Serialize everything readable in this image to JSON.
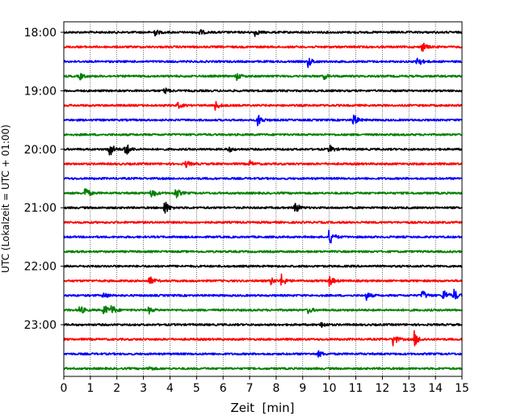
{
  "chart_data": {
    "type": "line",
    "subtype": "helicorder seismogram",
    "xlabel": "Zeit  [min]",
    "ylabel": "UTC (Lokalzeit = UTC + 01:00)",
    "xlim": [
      0,
      15
    ],
    "x_ticks": [
      "0",
      "1",
      "2",
      "3",
      "4",
      "5",
      "6",
      "7",
      "8",
      "9",
      "10",
      "11",
      "12",
      "13",
      "14",
      "15"
    ],
    "x_grid": "dotted vertical lines at each minute",
    "y_tick_labels": [
      "18:00",
      "19:00",
      "20:00",
      "21:00",
      "22:00",
      "23:00"
    ],
    "trace_interval_minutes": 15,
    "trace_colors": [
      "#000000",
      "#ff0000",
      "#0000ff",
      "#008000"
    ],
    "traces": [
      {
        "start": "18:00",
        "color": "#000000",
        "events": [
          [
            3.4,
            0.35
          ],
          [
            5.1,
            0.3
          ],
          [
            7.2,
            0.3
          ]
        ]
      },
      {
        "start": "18:15",
        "color": "#ff0000",
        "events": [
          [
            13.5,
            0.45
          ]
        ]
      },
      {
        "start": "18:30",
        "color": "#0000ff",
        "events": [
          [
            9.2,
            0.5
          ],
          [
            13.3,
            0.6
          ]
        ]
      },
      {
        "start": "18:45",
        "color": "#008000",
        "events": [
          [
            0.6,
            0.3
          ],
          [
            6.5,
            0.35
          ],
          [
            9.8,
            0.25
          ]
        ]
      },
      {
        "start": "19:00",
        "color": "#000000",
        "events": [
          [
            3.8,
            0.3
          ]
        ]
      },
      {
        "start": "19:15",
        "color": "#ff0000",
        "events": [
          [
            4.3,
            0.25
          ],
          [
            5.7,
            0.4
          ]
        ]
      },
      {
        "start": "19:30",
        "color": "#0000ff",
        "events": [
          [
            7.3,
            0.6
          ],
          [
            10.9,
            0.6
          ]
        ]
      },
      {
        "start": "19:45",
        "color": "#008000",
        "events": []
      },
      {
        "start": "20:00",
        "color": "#000000",
        "events": [
          [
            1.7,
            0.9
          ],
          [
            2.3,
            0.8
          ],
          [
            6.2,
            0.25
          ],
          [
            10.0,
            0.4
          ]
        ]
      },
      {
        "start": "20:15",
        "color": "#ff0000",
        "events": [
          [
            4.6,
            0.3
          ],
          [
            7.0,
            0.25
          ]
        ]
      },
      {
        "start": "20:30",
        "color": "#0000ff",
        "events": []
      },
      {
        "start": "20:45",
        "color": "#008000",
        "events": [
          [
            0.8,
            0.6
          ],
          [
            3.3,
            0.5
          ],
          [
            4.2,
            0.55
          ]
        ]
      },
      {
        "start": "21:00",
        "color": "#000000",
        "events": [
          [
            3.8,
            0.7
          ],
          [
            8.7,
            0.6
          ]
        ]
      },
      {
        "start": "21:15",
        "color": "#ff0000",
        "events": []
      },
      {
        "start": "21:30",
        "color": "#0000ff",
        "events": [
          [
            10.0,
            0.8
          ]
        ]
      },
      {
        "start": "21:45",
        "color": "#008000",
        "events": []
      },
      {
        "start": "22:00",
        "color": "#000000",
        "events": []
      },
      {
        "start": "22:15",
        "color": "#ff0000",
        "events": [
          [
            3.2,
            0.5
          ],
          [
            8.2,
            0.55
          ],
          [
            10.0,
            0.5
          ],
          [
            7.8,
            0.3
          ]
        ]
      },
      {
        "start": "22:30",
        "color": "#0000ff",
        "events": [
          [
            1.5,
            0.3
          ],
          [
            11.4,
            0.35
          ],
          [
            13.5,
            0.5
          ],
          [
            14.3,
            0.6
          ],
          [
            14.7,
            0.5
          ]
        ]
      },
      {
        "start": "22:45",
        "color": "#008000",
        "events": [
          [
            0.6,
            0.45
          ],
          [
            1.5,
            0.55
          ],
          [
            1.8,
            0.45
          ],
          [
            3.2,
            0.3
          ],
          [
            9.2,
            0.3
          ]
        ]
      },
      {
        "start": "23:00",
        "color": "#000000",
        "events": [
          [
            9.7,
            0.3
          ]
        ]
      },
      {
        "start": "23:15",
        "color": "#ff0000",
        "events": [
          [
            12.4,
            0.6
          ],
          [
            13.2,
            0.7
          ]
        ]
      },
      {
        "start": "23:30",
        "color": "#0000ff",
        "events": [
          [
            9.6,
            0.3
          ]
        ]
      },
      {
        "start": "23:45",
        "color": "#008000",
        "events": [
          [
            3.2,
            0.2
          ]
        ]
      }
    ]
  }
}
